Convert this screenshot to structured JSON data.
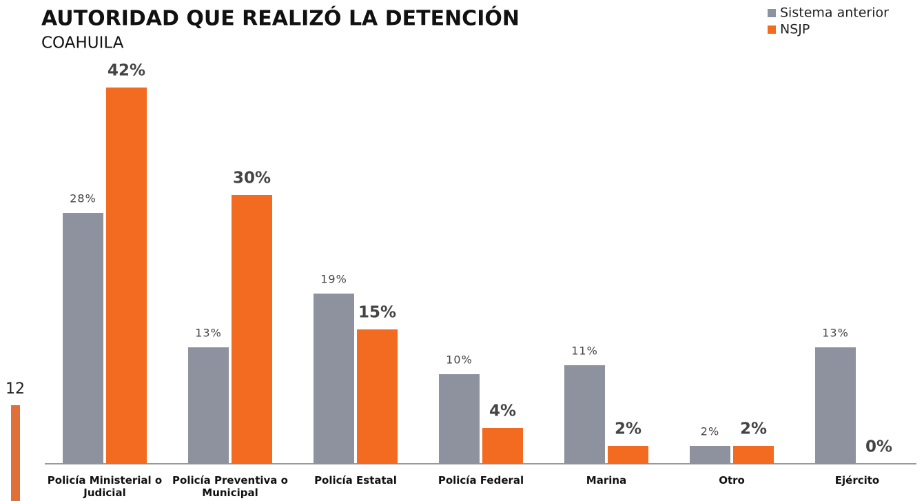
{
  "page_number": "12",
  "chart_data": {
    "type": "bar",
    "title": "AUTORIDAD QUE REALIZÓ LA DETENCIÓN",
    "subtitle": "COAHUILA",
    "categories": [
      "Policía Ministerial o Judicial",
      "Policía Preventiva o Municipal",
      "Policía Estatal",
      "Policía Federal",
      "Marina",
      "Otro",
      "Ejército"
    ],
    "series": [
      {
        "name": "Sistema anterior",
        "color": "#8e929e",
        "values": [
          28,
          13,
          19,
          10,
          11,
          2,
          13
        ],
        "value_labels": [
          "28%",
          "13%",
          "19%",
          "10%",
          "11%",
          "2%",
          "13%"
        ]
      },
      {
        "name": "NSJP",
        "color": "#f26b21",
        "values": [
          42,
          30,
          15,
          4,
          2,
          2,
          0
        ],
        "value_labels": [
          "42%",
          "30%",
          "15%",
          "4%",
          "2%",
          "2%",
          "0%"
        ]
      }
    ],
    "ylim": [
      0,
      42
    ],
    "legend": "top-right"
  }
}
